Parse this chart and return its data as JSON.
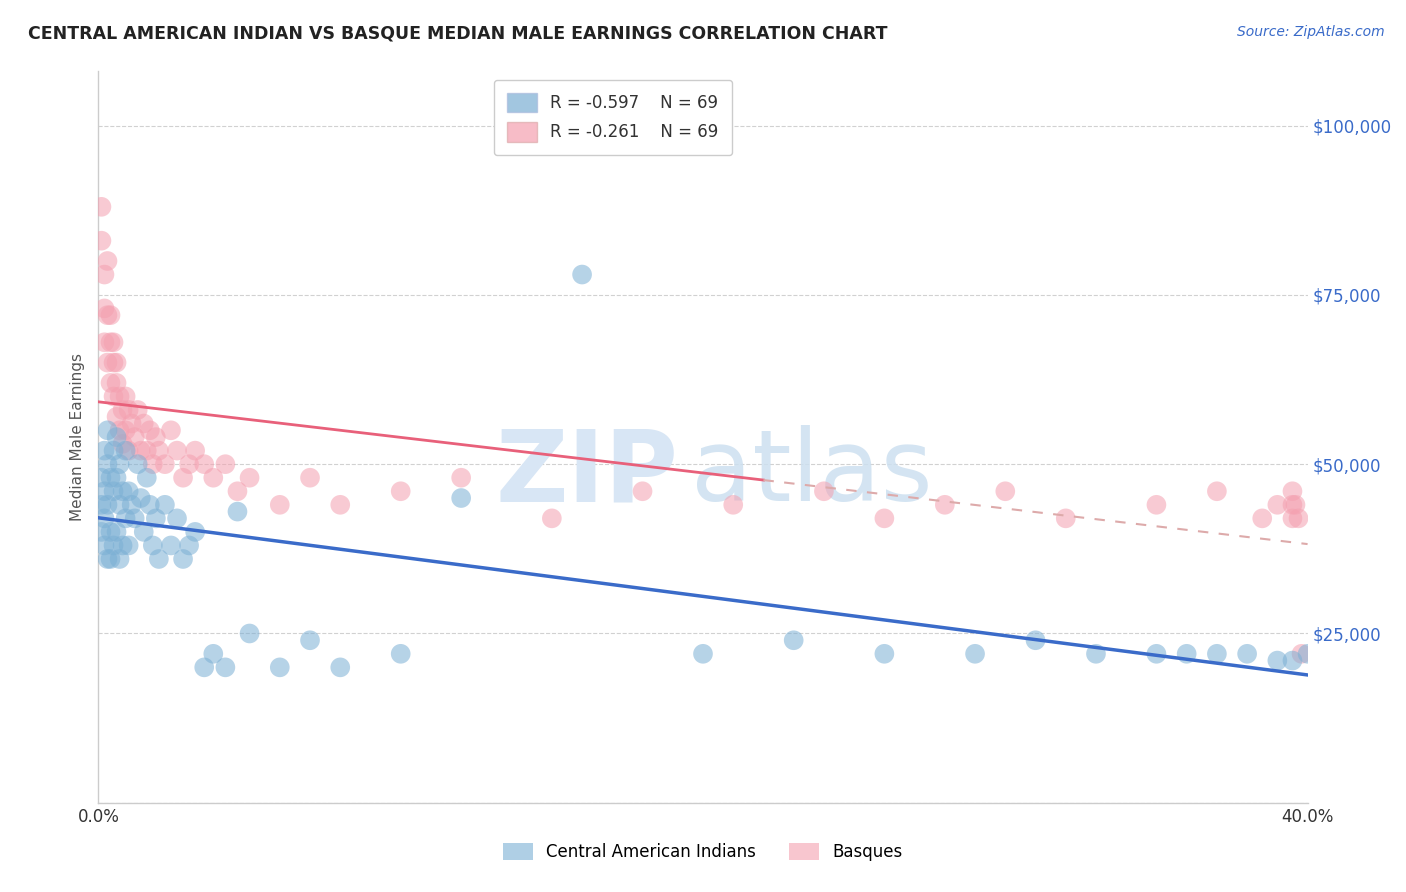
{
  "title": "CENTRAL AMERICAN INDIAN VS BASQUE MEDIAN MALE EARNINGS CORRELATION CHART",
  "source": "Source: ZipAtlas.com",
  "ylabel": "Median Male Earnings",
  "yticks": [
    0,
    25000,
    50000,
    75000,
    100000
  ],
  "ytick_labels": [
    "",
    "$25,000",
    "$50,000",
    "$75,000",
    "$100,000"
  ],
  "xlim": [
    0.0,
    0.4
  ],
  "ylim": [
    0,
    108000
  ],
  "blue_color": "#7bafd4",
  "pink_color": "#f4a0b0",
  "blue_line_color": "#3a6bc9",
  "pink_line_color": "#e8607a",
  "pink_line_dash": "#ddaaaa",
  "background_color": "#ffffff",
  "grid_color": "#cccccc",
  "legend_r_blue": "-0.597",
  "legend_n_blue": "69",
  "legend_r_pink": "-0.261",
  "legend_n_pink": "69",
  "blue_scatter_x": [
    0.001,
    0.001,
    0.001,
    0.002,
    0.002,
    0.002,
    0.002,
    0.003,
    0.003,
    0.003,
    0.003,
    0.004,
    0.004,
    0.004,
    0.005,
    0.005,
    0.005,
    0.006,
    0.006,
    0.006,
    0.007,
    0.007,
    0.007,
    0.008,
    0.008,
    0.009,
    0.009,
    0.01,
    0.01,
    0.011,
    0.012,
    0.013,
    0.014,
    0.015,
    0.016,
    0.017,
    0.018,
    0.019,
    0.02,
    0.022,
    0.024,
    0.026,
    0.028,
    0.03,
    0.032,
    0.035,
    0.038,
    0.042,
    0.046,
    0.05,
    0.06,
    0.07,
    0.08,
    0.1,
    0.12,
    0.16,
    0.2,
    0.23,
    0.26,
    0.29,
    0.31,
    0.33,
    0.35,
    0.36,
    0.37,
    0.38,
    0.39,
    0.395,
    0.4
  ],
  "blue_scatter_y": [
    48000,
    44000,
    40000,
    52000,
    46000,
    38000,
    42000,
    50000,
    44000,
    36000,
    55000,
    48000,
    40000,
    36000,
    52000,
    46000,
    38000,
    54000,
    48000,
    40000,
    50000,
    44000,
    36000,
    46000,
    38000,
    52000,
    42000,
    46000,
    38000,
    44000,
    42000,
    50000,
    45000,
    40000,
    48000,
    44000,
    38000,
    42000,
    36000,
    44000,
    38000,
    42000,
    36000,
    38000,
    40000,
    20000,
    22000,
    20000,
    43000,
    25000,
    20000,
    24000,
    20000,
    22000,
    45000,
    78000,
    22000,
    24000,
    22000,
    22000,
    24000,
    22000,
    22000,
    22000,
    22000,
    22000,
    21000,
    21000,
    22000
  ],
  "pink_scatter_x": [
    0.001,
    0.001,
    0.002,
    0.002,
    0.002,
    0.003,
    0.003,
    0.003,
    0.004,
    0.004,
    0.004,
    0.005,
    0.005,
    0.005,
    0.006,
    0.006,
    0.006,
    0.007,
    0.007,
    0.008,
    0.008,
    0.009,
    0.009,
    0.01,
    0.01,
    0.011,
    0.012,
    0.013,
    0.014,
    0.015,
    0.016,
    0.017,
    0.018,
    0.019,
    0.02,
    0.022,
    0.024,
    0.026,
    0.028,
    0.03,
    0.032,
    0.035,
    0.038,
    0.042,
    0.046,
    0.05,
    0.06,
    0.07,
    0.08,
    0.1,
    0.12,
    0.15,
    0.18,
    0.21,
    0.24,
    0.26,
    0.28,
    0.3,
    0.32,
    0.35,
    0.37,
    0.385,
    0.39,
    0.395,
    0.395,
    0.395,
    0.396,
    0.397,
    0.398
  ],
  "pink_scatter_y": [
    88000,
    83000,
    78000,
    73000,
    68000,
    72000,
    65000,
    80000,
    68000,
    62000,
    72000,
    65000,
    60000,
    68000,
    62000,
    57000,
    65000,
    60000,
    55000,
    58000,
    53000,
    60000,
    55000,
    58000,
    52000,
    56000,
    54000,
    58000,
    52000,
    56000,
    52000,
    55000,
    50000,
    54000,
    52000,
    50000,
    55000,
    52000,
    48000,
    50000,
    52000,
    50000,
    48000,
    50000,
    46000,
    48000,
    44000,
    48000,
    44000,
    46000,
    48000,
    42000,
    46000,
    44000,
    46000,
    42000,
    44000,
    46000,
    42000,
    44000,
    46000,
    42000,
    44000,
    46000,
    44000,
    42000,
    44000,
    42000,
    22000
  ]
}
